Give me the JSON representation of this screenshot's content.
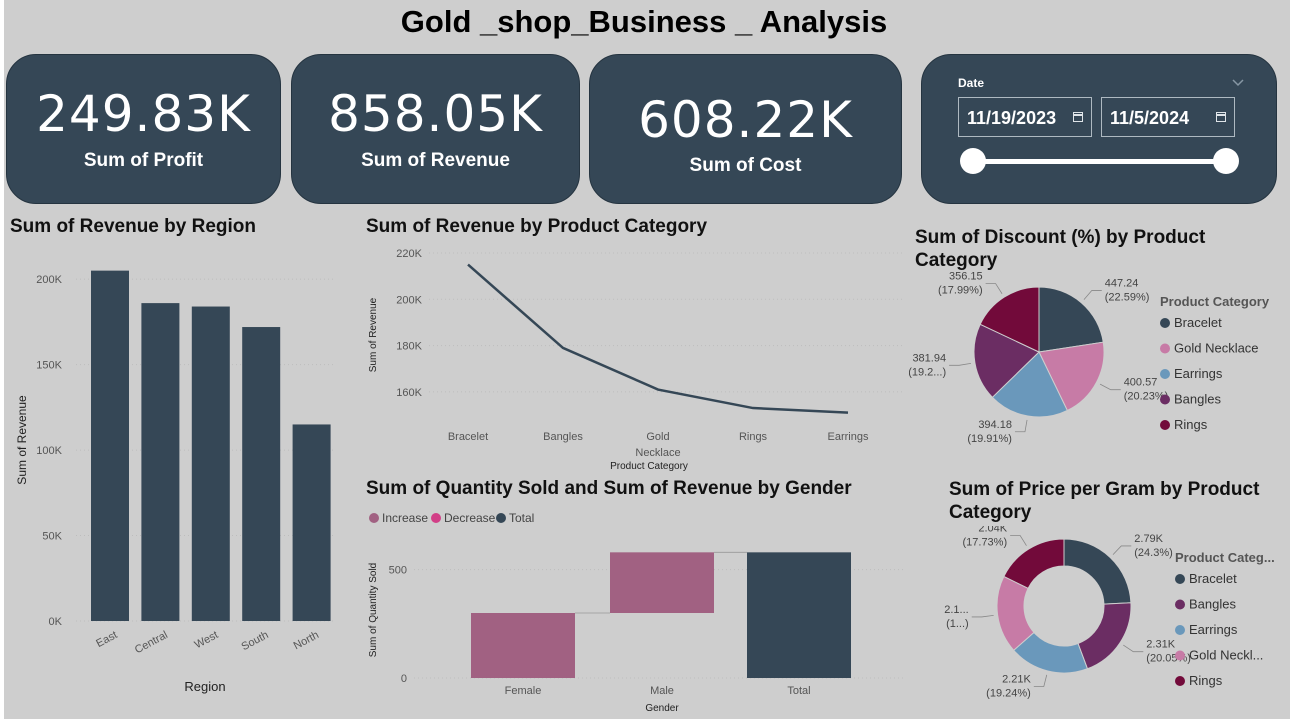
{
  "page_title": "Gold _shop_Business _ Analysis",
  "kpis": {
    "profit": {
      "value": "249.83K",
      "label": "Sum of Profit"
    },
    "revenue": {
      "value": "858.05K",
      "label": "Sum of Revenue"
    },
    "cost": {
      "value": "608.22K",
      "label": "Sum of Cost"
    }
  },
  "date_slicer": {
    "label": "Date",
    "start": "11/19/2023",
    "end": "11/5/2024"
  },
  "colors": {
    "navy": "#354756",
    "pink": "#c77ba6",
    "blue": "#6a98bb",
    "purple": "#6b2d63",
    "maroon": "#720a3a",
    "mauve": "#a16182"
  },
  "chart_data": [
    {
      "type": "bar",
      "title": "Sum of Revenue by Region",
      "xlabel": "Region",
      "ylabel": "Sum of Revenue",
      "categories": [
        "East",
        "Central",
        "West",
        "South",
        "North"
      ],
      "values": [
        205000,
        186000,
        184000,
        172000,
        115000
      ],
      "ylim": [
        0,
        220000
      ],
      "y_ticks": [
        0,
        50000,
        100000,
        150000,
        200000
      ],
      "y_tick_labels": [
        "0K",
        "50K",
        "100K",
        "150K",
        "200K"
      ]
    },
    {
      "type": "line",
      "title": "Sum of Revenue by Product Category",
      "xlabel": "Product Category",
      "ylabel": "Sum of Revenue",
      "categories": [
        "Bracelet",
        "Bangles",
        "Gold Necklace",
        "Rings",
        "Earrings"
      ],
      "values": [
        215000,
        179000,
        161000,
        153000,
        151000
      ],
      "ylim": [
        150000,
        220000
      ],
      "y_ticks": [
        160000,
        180000,
        200000,
        220000
      ],
      "y_tick_labels": [
        "160K",
        "180K",
        "200K",
        "220K"
      ]
    },
    {
      "type": "pie",
      "title": "Sum of Discount (%) by Product Category",
      "legend_title": "Product Category",
      "categories": [
        "Bracelet",
        "Gold Necklace",
        "Earrings",
        "Bangles",
        "Rings"
      ],
      "values": [
        447.24,
        400.57,
        394.18,
        381.94,
        356.15
      ],
      "value_labels": [
        "447.24",
        "400.57",
        "394.18",
        "381.94",
        "356.15"
      ],
      "percent_labels": [
        "(22.59%)",
        "(20.23%)",
        "(19.91%)",
        "(19.2...)",
        "(17.99%)"
      ],
      "colors": [
        "#354756",
        "#c77ba6",
        "#6a98bb",
        "#6b2d63",
        "#720a3a"
      ],
      "legend_placement": "right"
    },
    {
      "type": "waterfall",
      "title": "Sum of Quantity Sold and Sum of Revenue by Gender",
      "xlabel": "Gender",
      "ylabel": "Sum of Quantity Sold",
      "legend": [
        "Increase",
        "Decrease",
        "Total"
      ],
      "legend_colors": [
        "#a16182",
        "#d23f87",
        "#354756"
      ],
      "categories": [
        "Female",
        "Male",
        "Total"
      ],
      "values": [
        300,
        280,
        580
      ],
      "ylim": [
        0,
        600
      ],
      "y_ticks": [
        0,
        500
      ],
      "legend_placement": "top-left"
    },
    {
      "type": "donut",
      "title": "Sum of Price per Gram by Product Category",
      "legend_title": "Product Categ...",
      "categories": [
        "Bracelet",
        "Bangles",
        "Earrings",
        "Gold Neckl...",
        "Rings"
      ],
      "values": [
        2.79,
        2.31,
        2.21,
        2.16,
        2.04
      ],
      "value_labels": [
        "2.79K",
        "2.31K",
        "2.21K",
        "2.1...",
        "2.04K"
      ],
      "percent_labels": [
        "(24.3%)",
        "(20.05%)",
        "(19.24%)",
        "(1...)",
        "(17.73%)"
      ],
      "colors": [
        "#354756",
        "#6b2d63",
        "#6a98bb",
        "#c77ba6",
        "#720a3a"
      ],
      "legend_placement": "right"
    }
  ]
}
